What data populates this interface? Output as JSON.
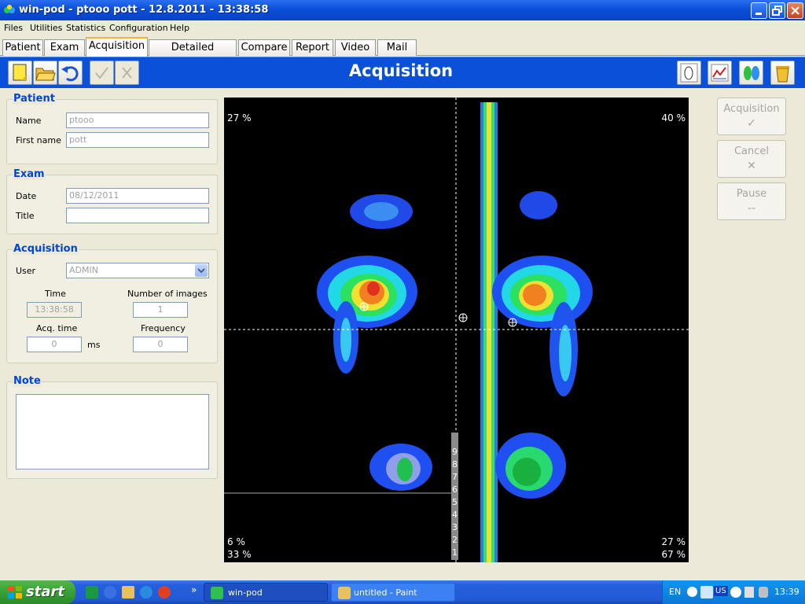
{
  "window": {
    "title": "win-pod - ptooo pott - 12.8.2011   - 13:38:58"
  },
  "menu": [
    "Files",
    "Utilities",
    "Statistics",
    "Configuration",
    "Help"
  ],
  "tabs": [
    "Patient",
    "Exam",
    "Acquisition",
    "Detailed analysis",
    "Compare",
    "Report",
    "Video",
    "Mail"
  ],
  "active_tab": "Acquisition",
  "toolbar": {
    "title": "Acquisition"
  },
  "patient": {
    "section": "Patient",
    "name_label": "Name",
    "name_value": "ptooo",
    "firstname_label": "First name",
    "firstname_value": "pott"
  },
  "exam": {
    "section": "Exam",
    "date_label": "Date",
    "date_value": "08/12/2011",
    "title_label": "Title",
    "title_value": ""
  },
  "acquisition": {
    "section": "Acquisition",
    "user_label": "User",
    "user_value": "ADMIN",
    "time_label": "Time",
    "time_value": "13:38:58",
    "num_images_label": "Number of images",
    "num_images_value": "1",
    "acq_time_label": "Acq. time",
    "acq_time_value": "0",
    "acq_time_unit": "ms",
    "frequency_label": "Frequency",
    "frequency_value": "0"
  },
  "note": {
    "section": "Note",
    "value": ""
  },
  "pressure_map": {
    "top_left": "27 %",
    "top_right": "40 %",
    "bottom_left_1": "6 %",
    "bottom_left_2": "33 %",
    "bottom_right_1": "27 %",
    "bottom_right_2": "67 %",
    "scale_ticks": [
      "9",
      "8",
      "7",
      "6",
      "5",
      "4",
      "3",
      "2",
      "1"
    ]
  },
  "right_buttons": {
    "acquisition": "Acquisition",
    "cancel": "Cancel",
    "pause": "Pause",
    "pause_icon": "--"
  },
  "taskbar": {
    "start": "start",
    "tasks": [
      "win-pod",
      "untitled - Paint"
    ],
    "language": "EN",
    "layout": "US",
    "clock": "13:39"
  },
  "colors": {
    "title_bar": "#0a4fd8",
    "toolbar": "#0a50d8",
    "section_title": "#0046d5",
    "taskbar": "#245fdc",
    "start": "#37a134",
    "tray": "#0b77d8"
  }
}
